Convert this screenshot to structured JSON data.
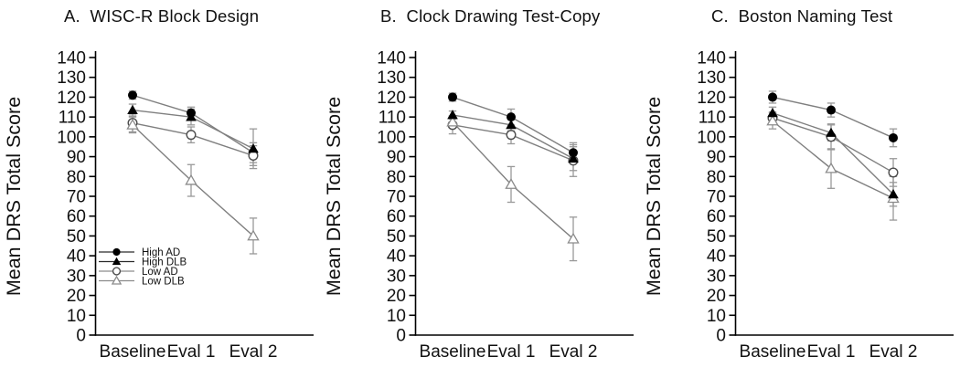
{
  "figure": {
    "background": "#ffffff",
    "text_color": "#111111",
    "axis_color": "#000000",
    "series_line_color": "#7f7f7f",
    "error_bar_color": "#999999"
  },
  "legend": {
    "location": "lower-left of panel A",
    "items": [
      {
        "label": "High AD",
        "marker": "circle-filled",
        "line_color": "#2a2a2a"
      },
      {
        "label": "High DLB",
        "marker": "triangle-filled",
        "line_color": "#2a2a2a"
      },
      {
        "label": "Low AD",
        "marker": "circle-open",
        "line_color": "#8c8c8c"
      },
      {
        "label": "Low DLB",
        "marker": "triangle-open",
        "line_color": "#8c8c8c"
      }
    ]
  },
  "chart_data": [
    {
      "type": "line",
      "title": "A.  WISC-R Block Design",
      "ylabel": "Mean DRS Total Score",
      "xlabel": "",
      "ylim": [
        0,
        140
      ],
      "ytick_step": 10,
      "grid": false,
      "legend": true,
      "categories": [
        "Baseline",
        "Eval 1",
        "Eval 2"
      ],
      "series": [
        {
          "name": "High AD",
          "marker": "circle-filled",
          "values": [
            121,
            112,
            92
          ],
          "errors": [
            2,
            3,
            5
          ]
        },
        {
          "name": "High DLB",
          "marker": "triangle-filled",
          "values": [
            113.5,
            110,
            94
          ],
          "errors": [
            3,
            4,
            10
          ]
        },
        {
          "name": "Low AD",
          "marker": "circle-open",
          "values": [
            107,
            101,
            90.5
          ],
          "errors": [
            4.5,
            4,
            5
          ]
        },
        {
          "name": "Low DLB",
          "marker": "triangle-open",
          "values": [
            106,
            78,
            50
          ],
          "errors": [
            4,
            8,
            9
          ]
        }
      ]
    },
    {
      "type": "line",
      "title": "B.  Clock Drawing Test-Copy",
      "ylabel": "Mean DRS Total Score",
      "xlabel": "",
      "ylim": [
        0,
        140
      ],
      "ytick_step": 10,
      "grid": false,
      "legend": false,
      "categories": [
        "Baseline",
        "Eval 1",
        "Eval 2"
      ],
      "series": [
        {
          "name": "High AD",
          "marker": "circle-filled",
          "values": [
            120,
            110,
            92
          ],
          "errors": [
            2,
            4,
            5
          ]
        },
        {
          "name": "High DLB",
          "marker": "triangle-filled",
          "values": [
            111,
            106,
            89
          ],
          "errors": [
            2,
            3,
            6
          ]
        },
        {
          "name": "Low AD",
          "marker": "circle-open",
          "values": [
            106,
            101,
            88
          ],
          "errors": [
            4.5,
            4.5,
            8
          ]
        },
        {
          "name": "Low DLB",
          "marker": "triangle-open",
          "values": [
            107.5,
            76,
            48.5
          ],
          "errors": [
            3,
            9,
            11
          ]
        }
      ]
    },
    {
      "type": "line",
      "title": "C.  Boston Naming Test",
      "ylabel": "Mean DRS Total Score",
      "xlabel": "",
      "ylim": [
        0,
        140
      ],
      "ytick_step": 10,
      "grid": false,
      "legend": false,
      "categories": [
        "Baseline",
        "Eval 1",
        "Eval 2"
      ],
      "series": [
        {
          "name": "High AD",
          "marker": "circle-filled",
          "values": [
            120,
            113.5,
            99.5
          ],
          "errors": [
            3,
            3.5,
            4.5
          ]
        },
        {
          "name": "High DLB",
          "marker": "triangle-filled",
          "values": [
            112,
            102,
            71
          ],
          "errors": [
            3,
            4,
            6
          ]
        },
        {
          "name": "Low AD",
          "marker": "circle-open",
          "values": [
            109.5,
            100,
            82
          ],
          "errors": [
            3,
            6.5,
            7
          ]
        },
        {
          "name": "Low DLB",
          "marker": "triangle-open",
          "values": [
            108,
            84,
            69
          ],
          "errors": [
            4,
            10,
            11
          ]
        }
      ]
    }
  ]
}
